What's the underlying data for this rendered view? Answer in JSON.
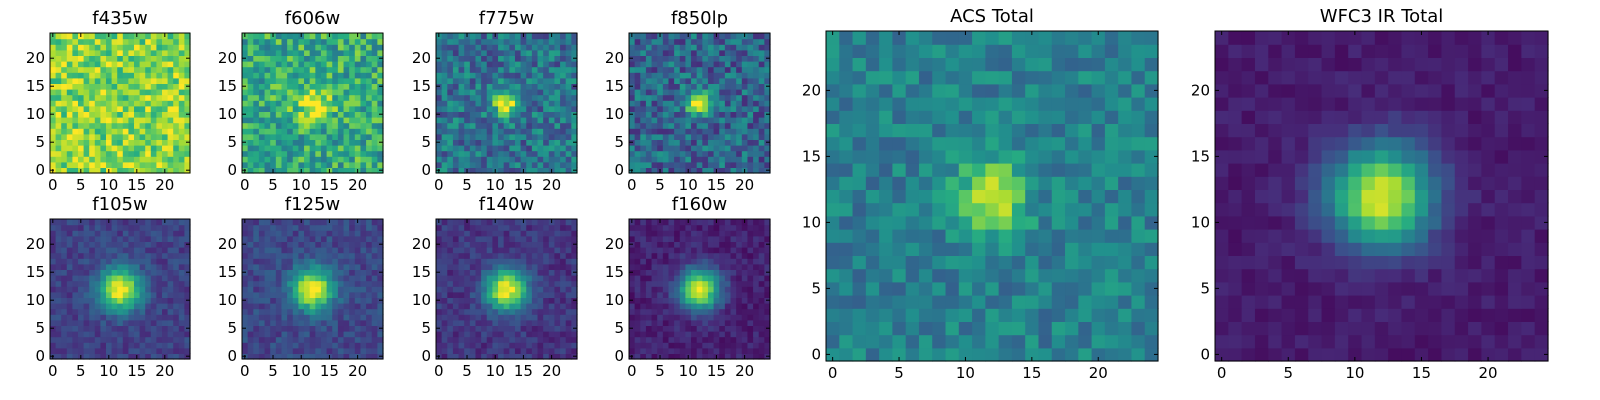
{
  "chart_data": [
    {
      "type": "heatmap",
      "title": "f435w",
      "xlim": [
        0,
        24
      ],
      "ylim": [
        0,
        24
      ],
      "xticks": [
        0,
        5,
        10,
        15,
        20
      ],
      "yticks": [
        0,
        5,
        10,
        15,
        20
      ],
      "grid": false,
      "colormap": "viridis",
      "source": {
        "center": [
          12,
          12
        ],
        "peak": 0.0,
        "sigma": 2.0,
        "background": 0.82,
        "noise": 0.2,
        "seed": 11
      }
    },
    {
      "type": "heatmap",
      "title": "f606w",
      "xlim": [
        0,
        24
      ],
      "ylim": [
        0,
        24
      ],
      "xticks": [
        0,
        5,
        10,
        15,
        20
      ],
      "yticks": [
        0,
        5,
        10,
        15,
        20
      ],
      "grid": false,
      "colormap": "viridis",
      "source": {
        "center": [
          12,
          12
        ],
        "peak": 0.35,
        "sigma": 2.2,
        "background": 0.62,
        "noise": 0.22,
        "seed": 23
      }
    },
    {
      "type": "heatmap",
      "title": "f775w",
      "xlim": [
        0,
        24
      ],
      "ylim": [
        0,
        24
      ],
      "xticks": [
        0,
        5,
        10,
        15,
        20
      ],
      "yticks": [
        0,
        5,
        10,
        15,
        20
      ],
      "grid": false,
      "colormap": "viridis",
      "source": {
        "center": [
          12,
          12
        ],
        "peak": 0.62,
        "sigma": 1.7,
        "background": 0.38,
        "noise": 0.2,
        "seed": 37
      }
    },
    {
      "type": "heatmap",
      "title": "f850lp",
      "xlim": [
        0,
        24
      ],
      "ylim": [
        0,
        24
      ],
      "xticks": [
        0,
        5,
        10,
        15,
        20
      ],
      "yticks": [
        0,
        5,
        10,
        15,
        20
      ],
      "grid": false,
      "colormap": "viridis",
      "source": {
        "center": [
          12,
          12
        ],
        "peak": 0.65,
        "sigma": 1.7,
        "background": 0.33,
        "noise": 0.2,
        "seed": 41
      }
    },
    {
      "type": "heatmap",
      "title": "f105w",
      "xlim": [
        0,
        24
      ],
      "ylim": [
        0,
        24
      ],
      "xticks": [
        0,
        5,
        10,
        15,
        20
      ],
      "yticks": [
        0,
        5,
        10,
        15,
        20
      ],
      "grid": false,
      "colormap": "viridis",
      "source": {
        "center": [
          12,
          12
        ],
        "peak": 0.82,
        "sigma": 2.6,
        "background": 0.2,
        "noise": 0.08,
        "seed": 53
      }
    },
    {
      "type": "heatmap",
      "title": "f125w",
      "xlim": [
        0,
        24
      ],
      "ylim": [
        0,
        24
      ],
      "xticks": [
        0,
        5,
        10,
        15,
        20
      ],
      "yticks": [
        0,
        5,
        10,
        15,
        20
      ],
      "grid": false,
      "colormap": "viridis",
      "source": {
        "center": [
          12,
          12
        ],
        "peak": 0.8,
        "sigma": 2.6,
        "background": 0.22,
        "noise": 0.09,
        "seed": 67
      }
    },
    {
      "type": "heatmap",
      "title": "f140w",
      "xlim": [
        0,
        24
      ],
      "ylim": [
        0,
        24
      ],
      "xticks": [
        0,
        5,
        10,
        15,
        20
      ],
      "yticks": [
        0,
        5,
        10,
        15,
        20
      ],
      "grid": false,
      "colormap": "viridis",
      "source": {
        "center": [
          12,
          12
        ],
        "peak": 0.85,
        "sigma": 2.6,
        "background": 0.16,
        "noise": 0.08,
        "seed": 79
      }
    },
    {
      "type": "heatmap",
      "title": "f160w",
      "xlim": [
        0,
        24
      ],
      "ylim": [
        0,
        24
      ],
      "xticks": [
        0,
        5,
        10,
        15,
        20
      ],
      "yticks": [
        0,
        5,
        10,
        15,
        20
      ],
      "grid": false,
      "colormap": "viridis",
      "source": {
        "center": [
          12,
          12
        ],
        "peak": 0.86,
        "sigma": 2.6,
        "background": 0.1,
        "noise": 0.07,
        "seed": 83
      }
    },
    {
      "type": "heatmap",
      "title": "ACS Total",
      "xlim": [
        0,
        24
      ],
      "ylim": [
        0,
        24
      ],
      "xticks": [
        0,
        5,
        10,
        15,
        20
      ],
      "yticks": [
        0,
        5,
        10,
        15,
        20
      ],
      "grid": false,
      "colormap": "viridis",
      "source": {
        "center": [
          12,
          12
        ],
        "peak": 0.52,
        "sigma": 1.8,
        "background": 0.44,
        "noise": 0.13,
        "seed": 97
      }
    },
    {
      "type": "heatmap",
      "title": "WFC3 IR Total",
      "xlim": [
        0,
        24
      ],
      "ylim": [
        0,
        24
      ],
      "xticks": [
        0,
        5,
        10,
        15,
        20
      ],
      "yticks": [
        0,
        5,
        10,
        15,
        20
      ],
      "grid": false,
      "colormap": "viridis",
      "source": {
        "center": [
          12,
          12
        ],
        "peak": 0.88,
        "sigma": 2.7,
        "background": 0.08,
        "noise": 0.045,
        "seed": 101
      }
    }
  ]
}
